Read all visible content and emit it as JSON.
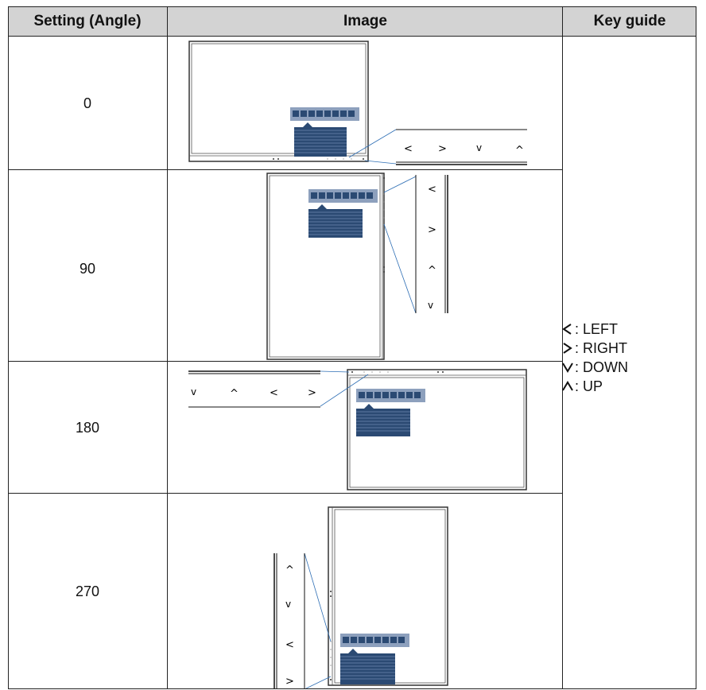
{
  "table": {
    "headers": [
      "Setting (Angle)",
      "Image",
      "Key guide"
    ],
    "rows": [
      {
        "angle": "0",
        "keys": [
          "<",
          ">",
          "v",
          "^"
        ]
      },
      {
        "angle": "90",
        "keys": [
          "<",
          ">",
          "^",
          "v"
        ]
      },
      {
        "angle": "180",
        "keys": [
          "v",
          "^",
          "<",
          ">"
        ]
      },
      {
        "angle": "270",
        "keys": [
          "^",
          "v",
          "<",
          ">"
        ]
      }
    ]
  },
  "key_guide": [
    {
      "icon": "chevron-left-icon",
      "text": ": LEFT"
    },
    {
      "icon": "chevron-right-icon",
      "text": ": RIGHT"
    },
    {
      "icon": "chevron-down-icon",
      "text": ": DOWN"
    },
    {
      "icon": "chevron-up-icon",
      "text": ": UP"
    }
  ],
  "colors": {
    "header_bg": "#d3d3d3",
    "osd_blue": "#2b4a73",
    "osd_bar": "#8da0bd",
    "callout_line": "#2f6fb5"
  }
}
